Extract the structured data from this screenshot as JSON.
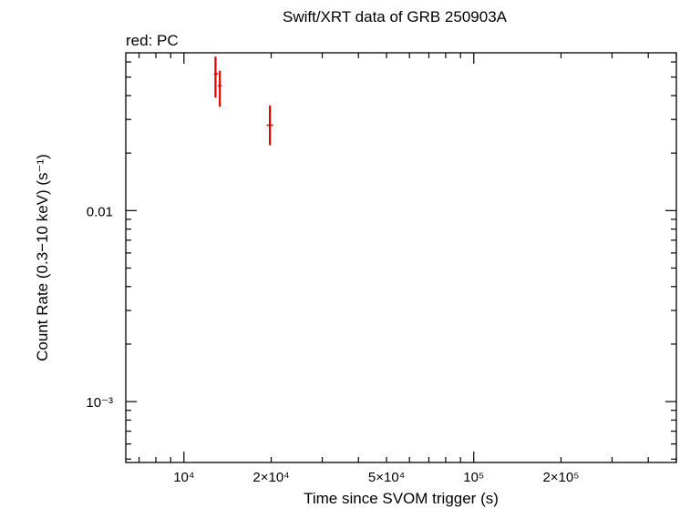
{
  "chart_data": {
    "type": "scatter",
    "title": "Swift/XRT data of GRB 250903A",
    "subtitle": "red: PC",
    "xlabel": "Time since SVOM trigger (s)",
    "ylabel": "Count Rate (0.3−10 keV) (s⁻¹)",
    "xscale": "log",
    "yscale": "log",
    "xlim": [
      6300,
      500000
    ],
    "ylim": [
      0.00048,
      0.067
    ],
    "grid": false,
    "xticks": [
      {
        "value": 10000,
        "label": "10⁴"
      },
      {
        "value": 20000,
        "label": "2×10⁴"
      },
      {
        "value": 50000,
        "label": "5×10⁴"
      },
      {
        "value": 100000,
        "label": "10⁵"
      },
      {
        "value": 200000,
        "label": "2×10⁵"
      }
    ],
    "yticks": [
      {
        "value": 0.01,
        "label": "0.01"
      },
      {
        "value": 0.001,
        "label": "10⁻³"
      }
    ],
    "series": [
      {
        "name": "PC",
        "color": "#e00000",
        "points": [
          {
            "x": 12850,
            "xerr": [
              150,
              250
            ],
            "y": 0.052,
            "yerr": [
              0.013,
              0.012
            ]
          },
          {
            "x": 13300,
            "xerr": [
              200,
              200
            ],
            "y": 0.045,
            "yerr": [
              0.01,
              0.009
            ]
          },
          {
            "x": 19800,
            "xerr": [
              500,
              500
            ],
            "y": 0.028,
            "yerr": [
              0.006,
              0.0075
            ]
          }
        ]
      }
    ]
  }
}
